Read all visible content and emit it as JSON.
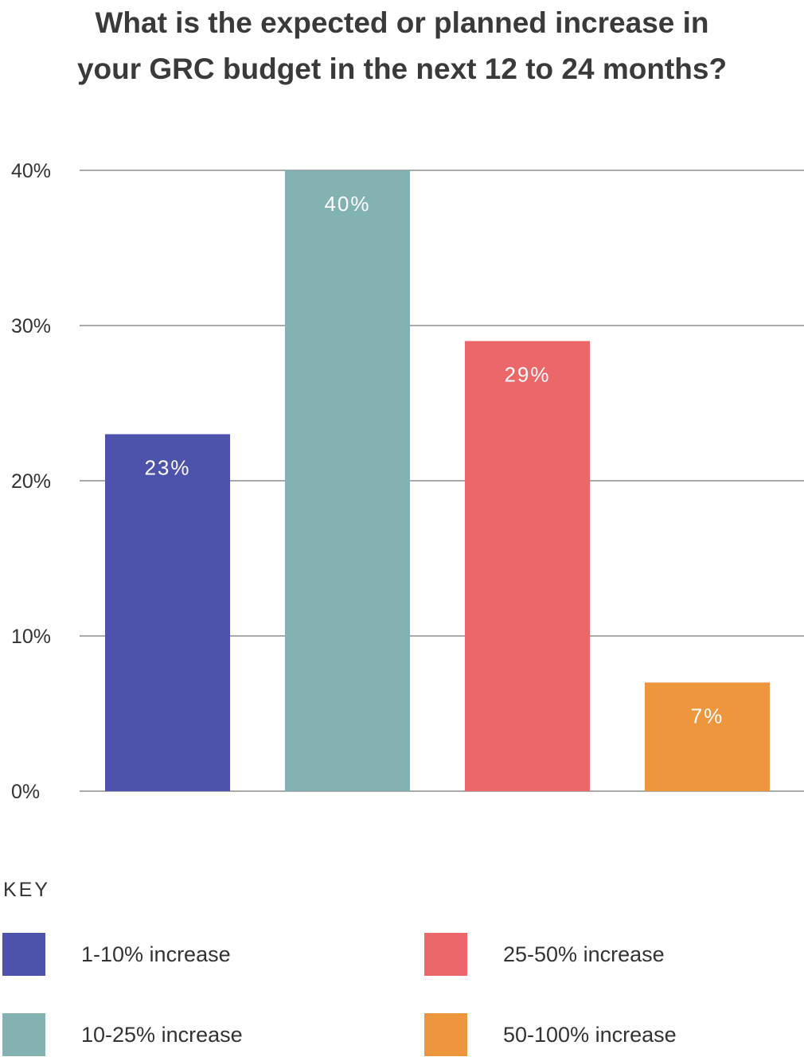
{
  "title_lines": [
    "What is the expected or planned increase in",
    "your GRC budget in the next 12 to 24 months?"
  ],
  "chart_data": {
    "type": "bar",
    "title": "What is the expected or planned increase in your GRC budget in the next 12 to 24 months?",
    "categories": [
      "1-10% increase",
      "10-25% increase",
      "25-50% increase",
      "50-100% increase"
    ],
    "values": [
      23,
      40,
      29,
      7
    ],
    "value_labels": [
      "23%",
      "40%",
      "29%",
      "7%"
    ],
    "colors": [
      "#4d52aa",
      "#83b2b2",
      "#ec6769",
      "#ee963d"
    ],
    "ylim": [
      0,
      40
    ],
    "yticks": [
      0,
      10,
      20,
      30,
      40
    ],
    "ytick_labels": [
      "0%",
      "10%",
      "20%",
      "30%",
      "40%"
    ],
    "xlabel": "",
    "ylabel": "",
    "grid": true,
    "legend_position": "bottom"
  },
  "legend": {
    "heading": "KEY",
    "items": [
      {
        "label": "1-10% increase",
        "color": "#4d52aa"
      },
      {
        "label": "10-25% increase",
        "color": "#83b2b2"
      },
      {
        "label": "25-50% increase",
        "color": "#ec6769"
      },
      {
        "label": "50-100% increase",
        "color": "#ee963d"
      }
    ]
  }
}
